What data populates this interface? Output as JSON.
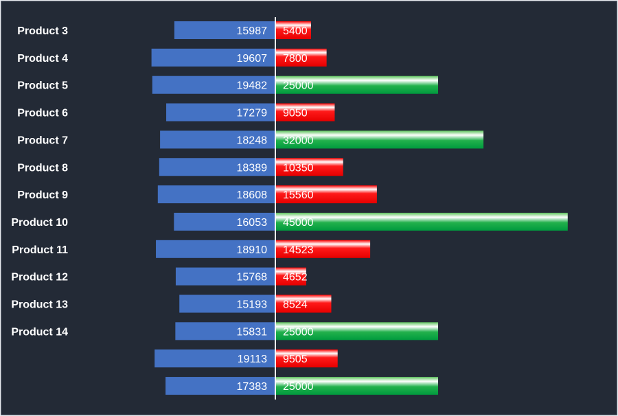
{
  "chart_data": {
    "type": "bar",
    "orientation": "horizontal",
    "layout": "butterfly",
    "categories": [
      "Product 3",
      "Product 4",
      "Product 5",
      "Product 6",
      "Product 7",
      "Product 8",
      "Product 9",
      "Product 10",
      "Product 11",
      "Product 12",
      "Product 13",
      "Product 14",
      "",
      ""
    ],
    "series": [
      {
        "values": [
          15987,
          19607,
          19482,
          17279,
          18248,
          18389,
          18608,
          16053,
          18910,
          15768,
          15193,
          15831,
          19113,
          17383
        ]
      },
      {
        "values": [
          5400,
          7800,
          25000,
          9050,
          32000,
          10350,
          15560,
          45000,
          14523,
          4652,
          8524,
          25000,
          9505,
          25000
        ]
      }
    ],
    "ylabel": "",
    "xlabel": "",
    "left_max": 21000,
    "right_max": 45000,
    "highlight_threshold": 25000,
    "grid": false,
    "legend": "none"
  },
  "colors": {
    "background": "#232a36",
    "left_bar": "#4472c4",
    "right_bar_low": "#ff0000",
    "right_bar_high": "#00b050",
    "axis_line": "#ffffff",
    "text": "#ffffff"
  }
}
